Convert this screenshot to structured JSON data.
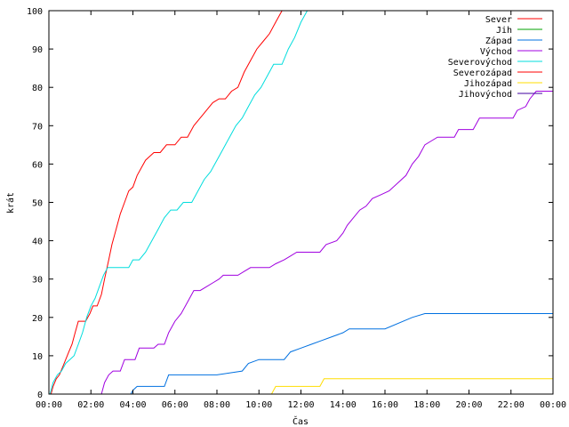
{
  "chart_data": {
    "type": "line",
    "title": "",
    "xlabel": "Čas",
    "ylabel": "krát",
    "xlim": [
      0,
      24
    ],
    "ylim": [
      0,
      100
    ],
    "grid": false,
    "legend_position": "top-right",
    "x_ticks": [
      0,
      2,
      4,
      6,
      8,
      10,
      12,
      14,
      16,
      18,
      20,
      22,
      24
    ],
    "x_tick_labels": [
      "00:00",
      "02:00",
      "04:00",
      "06:00",
      "08:00",
      "10:00",
      "12:00",
      "14:00",
      "16:00",
      "18:00",
      "20:00",
      "22:00",
      "00:00"
    ],
    "y_ticks": [
      0,
      10,
      20,
      30,
      40,
      50,
      60,
      70,
      80,
      90,
      100
    ],
    "y_tick_labels": [
      "0",
      "10",
      "20",
      "30",
      "40",
      "50",
      "60",
      "70",
      "80",
      "90",
      "100"
    ],
    "series": [
      {
        "name": "Sever",
        "color": "#ff0000",
        "points": [
          [
            0.1,
            0
          ],
          [
            0.2,
            2
          ],
          [
            0.35,
            4
          ],
          [
            0.5,
            5
          ],
          [
            0.65,
            7
          ],
          [
            0.8,
            9
          ],
          [
            0.95,
            11
          ],
          [
            1.1,
            13
          ],
          [
            1.25,
            16
          ],
          [
            1.4,
            19
          ],
          [
            1.55,
            19
          ],
          [
            1.75,
            19
          ],
          [
            1.95,
            21
          ],
          [
            2.1,
            23
          ],
          [
            2.3,
            23
          ],
          [
            2.5,
            26
          ],
          [
            2.65,
            30
          ],
          [
            2.85,
            35
          ],
          [
            3.0,
            39
          ],
          [
            3.2,
            43
          ],
          [
            3.4,
            47
          ],
          [
            3.6,
            50
          ],
          [
            3.8,
            53
          ],
          [
            4.0,
            54
          ],
          [
            4.2,
            57
          ],
          [
            4.4,
            59
          ],
          [
            4.6,
            61
          ],
          [
            4.8,
            62
          ],
          [
            5.0,
            63
          ],
          [
            5.3,
            63
          ],
          [
            5.6,
            65
          ],
          [
            6.0,
            65
          ],
          [
            6.3,
            67
          ],
          [
            6.6,
            67
          ],
          [
            6.9,
            70
          ],
          [
            7.2,
            72
          ],
          [
            7.5,
            74
          ],
          [
            7.8,
            76
          ],
          [
            8.1,
            77
          ],
          [
            8.4,
            77
          ],
          [
            8.7,
            79
          ],
          [
            9.0,
            80
          ],
          [
            9.3,
            84
          ],
          [
            9.6,
            87
          ],
          [
            9.9,
            90
          ],
          [
            10.2,
            92
          ],
          [
            10.5,
            94
          ],
          [
            10.8,
            97
          ],
          [
            11.1,
            100
          ]
        ]
      },
      {
        "name": "Jih",
        "color": "#00a000",
        "points": []
      },
      {
        "name": "Západ",
        "color": "#0070e0",
        "points": [
          [
            3.9,
            0
          ],
          [
            4.0,
            1
          ],
          [
            4.2,
            2
          ],
          [
            5.5,
            2
          ],
          [
            5.7,
            5
          ],
          [
            8.0,
            5
          ],
          [
            9.2,
            6
          ],
          [
            9.5,
            8
          ],
          [
            10.0,
            9
          ],
          [
            11.2,
            9
          ],
          [
            11.5,
            11
          ],
          [
            12.0,
            12
          ],
          [
            12.5,
            13
          ],
          [
            13.0,
            14
          ],
          [
            13.5,
            15
          ],
          [
            14.0,
            16
          ],
          [
            14.3,
            17
          ],
          [
            16.0,
            17
          ],
          [
            17.3,
            20
          ],
          [
            17.9,
            21
          ],
          [
            24.0,
            21
          ]
        ]
      },
      {
        "name": "Východ",
        "color": "#a000e0",
        "points": [
          [
            2.5,
            0
          ],
          [
            2.65,
            3
          ],
          [
            2.85,
            5
          ],
          [
            3.05,
            6
          ],
          [
            3.4,
            6
          ],
          [
            3.6,
            9
          ],
          [
            4.1,
            9
          ],
          [
            4.3,
            12
          ],
          [
            5.0,
            12
          ],
          [
            5.2,
            13
          ],
          [
            5.5,
            13
          ],
          [
            5.7,
            16
          ],
          [
            6.0,
            19
          ],
          [
            6.3,
            21
          ],
          [
            6.6,
            24
          ],
          [
            6.9,
            27
          ],
          [
            7.2,
            27
          ],
          [
            7.5,
            28
          ],
          [
            7.8,
            29
          ],
          [
            8.1,
            30
          ],
          [
            8.3,
            31
          ],
          [
            9.0,
            31
          ],
          [
            9.3,
            32
          ],
          [
            9.6,
            33
          ],
          [
            10.5,
            33
          ],
          [
            10.8,
            34
          ],
          [
            11.2,
            35
          ],
          [
            11.5,
            36
          ],
          [
            11.8,
            37
          ],
          [
            12.9,
            37
          ],
          [
            13.2,
            39
          ],
          [
            13.7,
            40
          ],
          [
            14.0,
            42
          ],
          [
            14.2,
            44
          ],
          [
            14.5,
            46
          ],
          [
            14.8,
            48
          ],
          [
            15.1,
            49
          ],
          [
            15.4,
            51
          ],
          [
            15.8,
            52
          ],
          [
            16.2,
            53
          ],
          [
            16.6,
            55
          ],
          [
            17.0,
            57
          ],
          [
            17.3,
            60
          ],
          [
            17.6,
            62
          ],
          [
            17.9,
            65
          ],
          [
            18.2,
            66
          ],
          [
            18.5,
            67
          ],
          [
            19.3,
            67
          ],
          [
            19.5,
            69
          ],
          [
            20.2,
            69
          ],
          [
            20.5,
            72
          ],
          [
            22.1,
            72
          ],
          [
            22.3,
            74
          ],
          [
            22.7,
            75
          ],
          [
            22.9,
            77
          ],
          [
            23.2,
            79
          ],
          [
            24.0,
            79
          ]
        ]
      },
      {
        "name": "Severovýchod",
        "color": "#00dddd",
        "points": [
          [
            0.05,
            0
          ],
          [
            0.2,
            3
          ],
          [
            0.4,
            5
          ],
          [
            0.6,
            6
          ],
          [
            0.8,
            8
          ],
          [
            1.0,
            9
          ],
          [
            1.2,
            10
          ],
          [
            1.4,
            13
          ],
          [
            1.6,
            16
          ],
          [
            1.8,
            20
          ],
          [
            2.0,
            23
          ],
          [
            2.2,
            25
          ],
          [
            2.4,
            28
          ],
          [
            2.6,
            31
          ],
          [
            2.8,
            33
          ],
          [
            3.0,
            33
          ],
          [
            3.5,
            33
          ],
          [
            3.8,
            33
          ],
          [
            4.0,
            35
          ],
          [
            4.3,
            35
          ],
          [
            4.6,
            37
          ],
          [
            4.9,
            40
          ],
          [
            5.2,
            43
          ],
          [
            5.5,
            46
          ],
          [
            5.8,
            48
          ],
          [
            6.1,
            48
          ],
          [
            6.4,
            50
          ],
          [
            6.8,
            50
          ],
          [
            7.1,
            53
          ],
          [
            7.4,
            56
          ],
          [
            7.7,
            58
          ],
          [
            8.0,
            61
          ],
          [
            8.3,
            64
          ],
          [
            8.6,
            67
          ],
          [
            8.9,
            70
          ],
          [
            9.2,
            72
          ],
          [
            9.5,
            75
          ],
          [
            9.8,
            78
          ],
          [
            10.1,
            80
          ],
          [
            10.4,
            83
          ],
          [
            10.7,
            86
          ],
          [
            11.1,
            86
          ],
          [
            11.4,
            90
          ],
          [
            11.7,
            93
          ],
          [
            12.0,
            97
          ],
          [
            12.3,
            100
          ]
        ]
      },
      {
        "name": "Severozápad",
        "color": "#ff0000",
        "points": []
      },
      {
        "name": "Jihozápad",
        "color": "#ffdd00",
        "points": [
          [
            10.6,
            0
          ],
          [
            10.8,
            2
          ],
          [
            12.9,
            2
          ],
          [
            13.1,
            4
          ],
          [
            24.0,
            4
          ]
        ]
      },
      {
        "name": "Jihovýchod",
        "color": "#4000a0",
        "points": []
      }
    ]
  }
}
